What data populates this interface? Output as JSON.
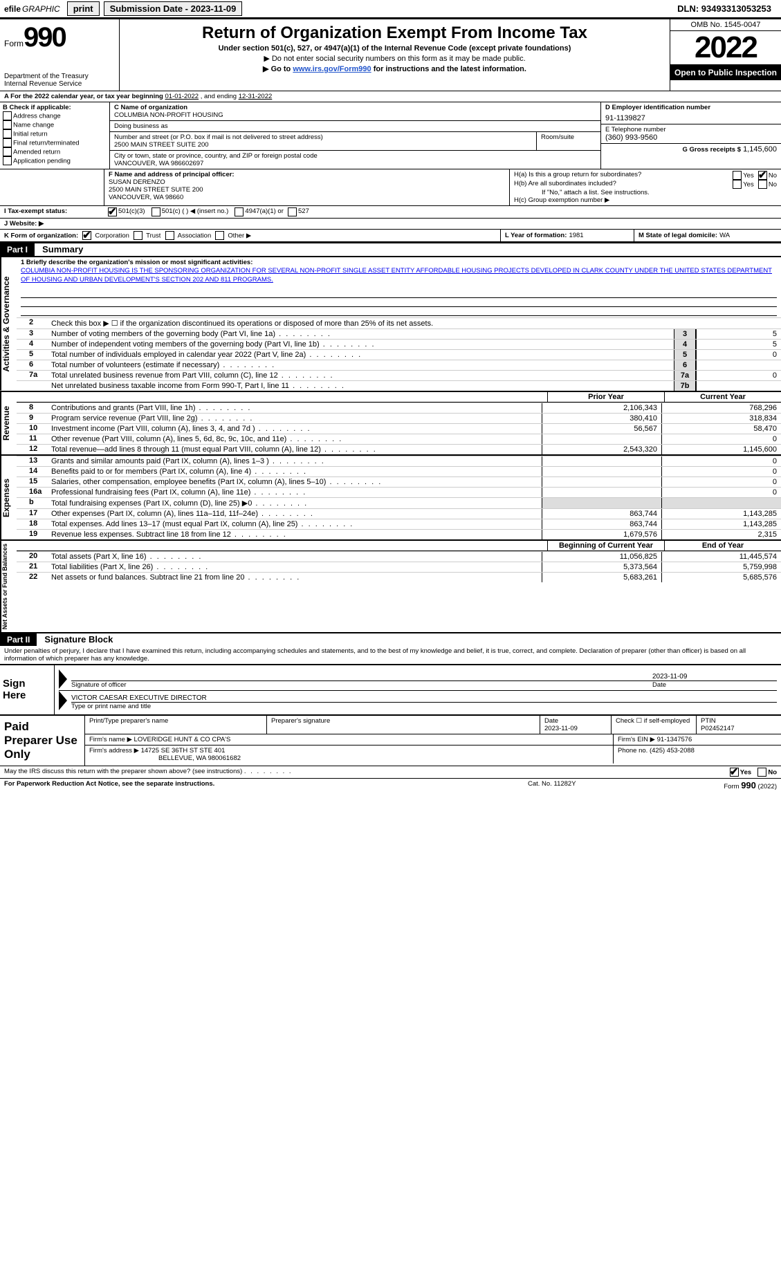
{
  "topbar": {
    "efile": "efile",
    "graphic": "GRAPHIC",
    "print": "print",
    "submission": "Submission Date - 2023-11-09",
    "dln": "DLN: 93493313053253"
  },
  "header": {
    "form_label": "Form",
    "form_number": "990",
    "dept": "Department of the Treasury",
    "irs": "Internal Revenue Service",
    "title": "Return of Organization Exempt From Income Tax",
    "sub1": "Under section 501(c), 527, or 4947(a)(1) of the Internal Revenue Code (except private foundations)",
    "sub2": "▶ Do not enter social security numbers on this form as it may be made public.",
    "sub3_pre": "▶ Go to ",
    "sub3_link": "www.irs.gov/Form990",
    "sub3_post": " for instructions and the latest information.",
    "omb": "OMB No. 1545-0047",
    "year": "2022",
    "open": "Open to Public Inspection"
  },
  "rowA": {
    "text_pre": "A For the 2022 calendar year, or tax year beginning ",
    "begin": "01-01-2022",
    "mid": " , and ending ",
    "end": "12-31-2022"
  },
  "boxB": {
    "title": "B Check if applicable:",
    "items": [
      "Address change",
      "Name change",
      "Initial return",
      "Final return/terminated",
      "Amended return",
      "Application pending"
    ]
  },
  "boxC": {
    "label_name": "C Name of organization",
    "org": "COLUMBIA NON-PROFIT HOUSING",
    "dba_label": "Doing business as",
    "dba": "",
    "street_label": "Number and street (or P.O. box if mail is not delivered to street address)",
    "room_label": "Room/suite",
    "street": "2500 MAIN STREET SUITE 200",
    "city_label": "City or town, state or province, country, and ZIP or foreign postal code",
    "city": "VANCOUVER, WA  986602697"
  },
  "boxD": {
    "label": "D Employer identification number",
    "ein": "91-1139827"
  },
  "boxE": {
    "label": "E Telephone number",
    "phone": "(360) 993-9560"
  },
  "boxG": {
    "label": "G Gross receipts $",
    "amount": "1,145,600"
  },
  "boxF": {
    "label": "F Name and address of principal officer:",
    "name": "SUSAN DERENZO",
    "addr1": "2500 MAIN STREET SUITE 200",
    "addr2": "VANCOUVER, WA  98660"
  },
  "boxH": {
    "a": "H(a)  Is this a group return for subordinates?",
    "b": "H(b)  Are all subordinates included?",
    "b_note": "If \"No,\" attach a list. See instructions.",
    "c": "H(c)  Group exemption number ▶",
    "yes": "Yes",
    "no": "No"
  },
  "boxI": {
    "label": "I  Tax-exempt status:",
    "c3": "501(c)(3)",
    "c": "501(c) (    ) ◀ (insert no.)",
    "a1": "4947(a)(1) or",
    "527": "527"
  },
  "boxJ": {
    "label": "J  Website: ▶",
    "val": ""
  },
  "boxK": {
    "label": "K Form of organization:",
    "corp": "Corporation",
    "trust": "Trust",
    "assoc": "Association",
    "other": "Other ▶"
  },
  "boxL": {
    "label": "L Year of formation:",
    "val": "1981"
  },
  "boxM": {
    "label": "M State of legal domicile:",
    "val": "WA"
  },
  "part1": {
    "hdr": "Part I",
    "title": "Summary",
    "line1_label": "1  Briefly describe the organization's mission or most significant activities:",
    "mission": "COLUMBIA NON-PROFIT HOUSING IS THE SPONSORING ORGANIZATION FOR SEVERAL NON-PROFIT SINGLE ASSET ENTITY AFFORDABLE HOUSING PROJECTS DEVELOPED IN CLARK COUNTY UNDER THE UNITED STATES DEPARTMENT OF HOUSING AND URBAN DEVELOPMENT'S SECTION 202 AND 811 PROGRAMS."
  },
  "gov_rows": [
    {
      "n": "2",
      "desc": "Check this box ▶ ☐  if the organization discontinued its operations or disposed of more than 25% of its net assets.",
      "box": "",
      "val": ""
    },
    {
      "n": "3",
      "desc": "Number of voting members of the governing body (Part VI, line 1a)",
      "box": "3",
      "val": "5"
    },
    {
      "n": "4",
      "desc": "Number of independent voting members of the governing body (Part VI, line 1b)",
      "box": "4",
      "val": "5"
    },
    {
      "n": "5",
      "desc": "Total number of individuals employed in calendar year 2022 (Part V, line 2a)",
      "box": "5",
      "val": "0"
    },
    {
      "n": "6",
      "desc": "Total number of volunteers (estimate if necessary)",
      "box": "6",
      "val": ""
    },
    {
      "n": "7a",
      "desc": "Total unrelated business revenue from Part VIII, column (C), line 12",
      "box": "7a",
      "val": "0"
    },
    {
      "n": "",
      "desc": "Net unrelated business taxable income from Form 990-T, Part I, line 11",
      "box": "7b",
      "val": ""
    }
  ],
  "col_hdrs": {
    "prior": "Prior Year",
    "current": "Current Year"
  },
  "revenue_rows": [
    {
      "n": "8",
      "desc": "Contributions and grants (Part VIII, line 1h)",
      "py": "2,106,343",
      "cy": "768,296"
    },
    {
      "n": "9",
      "desc": "Program service revenue (Part VIII, line 2g)",
      "py": "380,410",
      "cy": "318,834"
    },
    {
      "n": "10",
      "desc": "Investment income (Part VIII, column (A), lines 3, 4, and 7d )",
      "py": "56,567",
      "cy": "58,470"
    },
    {
      "n": "11",
      "desc": "Other revenue (Part VIII, column (A), lines 5, 6d, 8c, 9c, 10c, and 11e)",
      "py": "",
      "cy": "0"
    },
    {
      "n": "12",
      "desc": "Total revenue—add lines 8 through 11 (must equal Part VIII, column (A), line 12)",
      "py": "2,543,320",
      "cy": "1,145,600"
    }
  ],
  "expense_rows": [
    {
      "n": "13",
      "desc": "Grants and similar amounts paid (Part IX, column (A), lines 1–3 )",
      "py": "",
      "cy": "0"
    },
    {
      "n": "14",
      "desc": "Benefits paid to or for members (Part IX, column (A), line 4)",
      "py": "",
      "cy": "0"
    },
    {
      "n": "15",
      "desc": "Salaries, other compensation, employee benefits (Part IX, column (A), lines 5–10)",
      "py": "",
      "cy": "0"
    },
    {
      "n": "16a",
      "desc": "Professional fundraising fees (Part IX, column (A), line 11e)",
      "py": "",
      "cy": "0"
    },
    {
      "n": "b",
      "desc": "Total fundraising expenses (Part IX, column (D), line 25) ▶0",
      "py": "",
      "cy": "",
      "shade": true
    },
    {
      "n": "17",
      "desc": "Other expenses (Part IX, column (A), lines 11a–11d, 11f–24e)",
      "py": "863,744",
      "cy": "1,143,285"
    },
    {
      "n": "18",
      "desc": "Total expenses. Add lines 13–17 (must equal Part IX, column (A), line 25)",
      "py": "863,744",
      "cy": "1,143,285"
    },
    {
      "n": "19",
      "desc": "Revenue less expenses. Subtract line 18 from line 12",
      "py": "1,679,576",
      "cy": "2,315"
    }
  ],
  "na_hdrs": {
    "beg": "Beginning of Current Year",
    "end": "End of Year"
  },
  "na_rows": [
    {
      "n": "20",
      "desc": "Total assets (Part X, line 16)",
      "py": "11,056,825",
      "cy": "11,445,574"
    },
    {
      "n": "21",
      "desc": "Total liabilities (Part X, line 26)",
      "py": "5,373,564",
      "cy": "5,759,998"
    },
    {
      "n": "22",
      "desc": "Net assets or fund balances. Subtract line 21 from line 20",
      "py": "5,683,261",
      "cy": "5,685,576"
    }
  ],
  "vtabs": {
    "gov": "Activities & Governance",
    "rev": "Revenue",
    "exp": "Expenses",
    "na": "Net Assets or Fund Balances"
  },
  "part2": {
    "hdr": "Part II",
    "title": "Signature Block",
    "decl": "Under penalties of perjury, I declare that I have examined this return, including accompanying schedules and statements, and to the best of my knowledge and belief, it is true, correct, and complete. Declaration of preparer (other than officer) is based on all information of which preparer has any knowledge."
  },
  "sign": {
    "here": "Sign Here",
    "sig_officer": "Signature of officer",
    "date": "Date",
    "date_val": "2023-11-09",
    "name": "VICTOR CAESAR  EXECUTIVE DIRECTOR",
    "type_print": "Type or print name and title"
  },
  "paid": {
    "label": "Paid Preparer Use Only",
    "col1": "Print/Type preparer's name",
    "col2": "Preparer's signature",
    "col3": "Date",
    "date_val": "2023-11-09",
    "col4": "Check ☐ if self-employed",
    "col5": "PTIN",
    "ptin": "P02452147",
    "firm_name_l": "Firm's name    ▶",
    "firm_name": "LOVERIDGE HUNT & CO CPA'S",
    "firm_ein_l": "Firm's EIN ▶",
    "firm_ein": "91-1347576",
    "firm_addr_l": "Firm's address ▶",
    "firm_addr1": "14725 SE 36TH ST STE 401",
    "firm_addr2": "BELLEVUE, WA  980061682",
    "phone_l": "Phone no.",
    "phone": "(425) 453-2088"
  },
  "footer": {
    "discuss": "May the IRS discuss this return with the preparer shown above? (see instructions)",
    "yes": "Yes",
    "no": "No",
    "pra": "For Paperwork Reduction Act Notice, see the separate instructions.",
    "cat": "Cat. No. 11282Y",
    "form": "Form 990 (2022)"
  },
  "colors": {
    "link": "#2255cc",
    "black": "#000000",
    "shade": "#dddddd"
  }
}
